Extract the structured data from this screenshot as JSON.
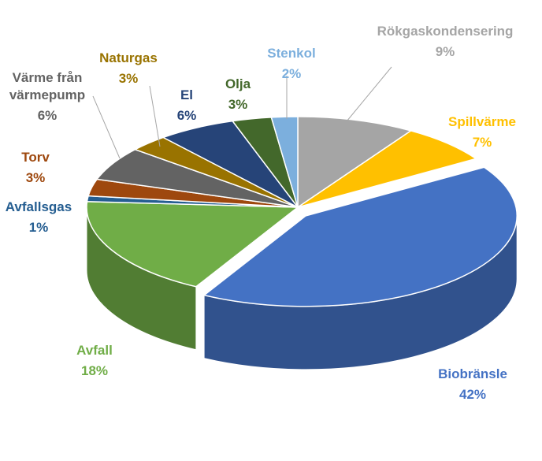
{
  "chart_data": {
    "type": "pie",
    "title": "",
    "start_category": "Rökgaskondensering",
    "direction": "clockwise",
    "style": "3d-exploded",
    "slices": [
      {
        "label": "Rökgaskondensering",
        "value": 9,
        "percent_label": "9%",
        "color": "#a5a5a5",
        "label_color": "#a5a5a5"
      },
      {
        "label": "Spillvärme",
        "value": 7,
        "percent_label": "7%",
        "color": "#ffc000",
        "label_color": "#ffc000"
      },
      {
        "label": "Biobränsle",
        "value": 42,
        "percent_label": "42%",
        "color": "#4472c4",
        "label_color": "#4472c4"
      },
      {
        "label": "Avfall",
        "value": 18,
        "percent_label": "18%",
        "color": "#70ad47",
        "label_color": "#70ad47"
      },
      {
        "label": "Avfallsgas",
        "value": 1,
        "percent_label": "1%",
        "color": "#255e91",
        "label_color": "#255e91"
      },
      {
        "label": "Torv",
        "value": 3,
        "percent_label": "3%",
        "color": "#9e480e",
        "label_color": "#9e480e"
      },
      {
        "label": "Värme från värmepump",
        "label_lines": [
          "Värme från",
          "värmepump"
        ],
        "value": 6,
        "percent_label": "6%",
        "color": "#636363",
        "label_color": "#636363"
      },
      {
        "label": "Naturgas",
        "value": 3,
        "percent_label": "3%",
        "color": "#997300",
        "label_color": "#997300"
      },
      {
        "label": "El",
        "value": 6,
        "percent_label": "6%",
        "color": "#264478",
        "label_color": "#264478"
      },
      {
        "label": "Olja",
        "value": 3,
        "percent_label": "3%",
        "color": "#43682b",
        "label_color": "#43682b"
      },
      {
        "label": "Stenkol",
        "value": 2,
        "percent_label": "2%",
        "color": "#7cafdd",
        "label_color": "#7cafdd"
      }
    ]
  }
}
